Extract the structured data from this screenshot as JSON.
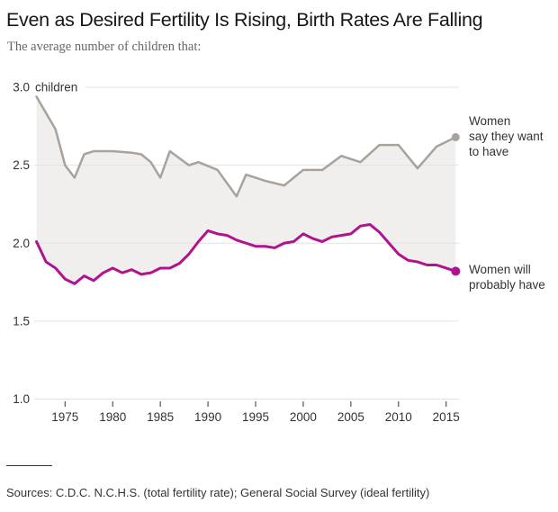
{
  "header": {
    "title": "Even as Desired Fertility Is Rising, Birth Rates Are Falling",
    "subtitle": "The average number of children that:"
  },
  "chart_data": {
    "type": "line",
    "title": "Even as Desired Fertility Is Rising, Birth Rates Are Falling",
    "subtitle": "The average number of children that:",
    "unit_label": "children",
    "grid": true,
    "band_between_series": true,
    "band_fill": "#f0efee",
    "grid_color": "#e2e2e2",
    "tick_color": "#555555",
    "label_color": "#333333",
    "x": {
      "min": 1972,
      "max": 2016,
      "ticks": [
        1975,
        1980,
        1985,
        1990,
        1995,
        2000,
        2005,
        2010,
        2015
      ],
      "tick_labels": [
        "1975",
        "1980",
        "1985",
        "1990",
        "1995",
        "2000",
        "2005",
        "2010",
        "2015"
      ]
    },
    "y": {
      "min": 1.0,
      "max": 3.0,
      "ticks": [
        3.0,
        2.5,
        2.0,
        1.5,
        1.0
      ],
      "tick_labels": [
        "3.0",
        "2.5",
        "2.0",
        "1.5",
        "1.0"
      ]
    },
    "series": [
      {
        "name": "ideal-fertility",
        "label": "Women\nsay they want\nto have",
        "color": "#a8a29a",
        "line_width": 2.5,
        "end_dot_radius": 4.5,
        "points": [
          [
            1972,
            2.94
          ],
          [
            1974,
            2.73
          ],
          [
            1975,
            2.5
          ],
          [
            1976,
            2.42
          ],
          [
            1977,
            2.57
          ],
          [
            1978,
            2.59
          ],
          [
            1980,
            2.59
          ],
          [
            1982,
            2.58
          ],
          [
            1983,
            2.57
          ],
          [
            1984,
            2.52
          ],
          [
            1985,
            2.42
          ],
          [
            1986,
            2.59
          ],
          [
            1988,
            2.5
          ],
          [
            1989,
            2.52
          ],
          [
            1991,
            2.47
          ],
          [
            1993,
            2.3
          ],
          [
            1994,
            2.44
          ],
          [
            1996,
            2.4
          ],
          [
            1998,
            2.37
          ],
          [
            2000,
            2.47
          ],
          [
            2002,
            2.47
          ],
          [
            2004,
            2.56
          ],
          [
            2006,
            2.52
          ],
          [
            2008,
            2.63
          ],
          [
            2010,
            2.63
          ],
          [
            2012,
            2.48
          ],
          [
            2014,
            2.62
          ],
          [
            2016,
            2.68
          ]
        ]
      },
      {
        "name": "total-fertility-rate",
        "label": "Women will\nprobably have",
        "color": "#b0138f",
        "line_width": 3,
        "end_dot_radius": 5,
        "points": [
          [
            1972,
            2.01
          ],
          [
            1973,
            1.88
          ],
          [
            1974,
            1.84
          ],
          [
            1975,
            1.77
          ],
          [
            1976,
            1.74
          ],
          [
            1977,
            1.79
          ],
          [
            1978,
            1.76
          ],
          [
            1979,
            1.81
          ],
          [
            1980,
            1.84
          ],
          [
            1981,
            1.81
          ],
          [
            1982,
            1.83
          ],
          [
            1983,
            1.8
          ],
          [
            1984,
            1.81
          ],
          [
            1985,
            1.84
          ],
          [
            1986,
            1.84
          ],
          [
            1987,
            1.87
          ],
          [
            1988,
            1.93
          ],
          [
            1989,
            2.01
          ],
          [
            1990,
            2.08
          ],
          [
            1991,
            2.06
          ],
          [
            1992,
            2.05
          ],
          [
            1993,
            2.02
          ],
          [
            1994,
            2.0
          ],
          [
            1995,
            1.98
          ],
          [
            1996,
            1.98
          ],
          [
            1997,
            1.97
          ],
          [
            1998,
            2.0
          ],
          [
            1999,
            2.01
          ],
          [
            2000,
            2.06
          ],
          [
            2001,
            2.03
          ],
          [
            2002,
            2.01
          ],
          [
            2003,
            2.04
          ],
          [
            2004,
            2.05
          ],
          [
            2005,
            2.06
          ],
          [
            2006,
            2.11
          ],
          [
            2007,
            2.12
          ],
          [
            2008,
            2.07
          ],
          [
            2009,
            2.0
          ],
          [
            2010,
            1.93
          ],
          [
            2011,
            1.89
          ],
          [
            2012,
            1.88
          ],
          [
            2013,
            1.86
          ],
          [
            2014,
            1.86
          ],
          [
            2015,
            1.84
          ],
          [
            2016,
            1.82
          ]
        ]
      }
    ],
    "legend_position": "right-of-line-ends"
  },
  "footer": {
    "sources": "Sources: C.D.C. N.C.H.S. (total fertility rate); General Social Survey (ideal fertility)"
  }
}
